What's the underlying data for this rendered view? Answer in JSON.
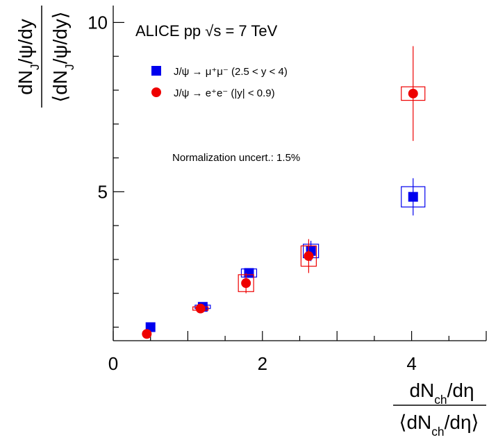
{
  "chart_data": {
    "type": "scatter",
    "title": "ALICE pp √s = 7 TeV",
    "note": "Normalization uncert.: 1.5%",
    "xlabel": {
      "numerator": "dN_ch/dη",
      "denominator": "⟨dN_ch/dη⟩"
    },
    "ylabel": {
      "numerator": "dN_J/ψ/dy",
      "denominator": "⟨dN_J/ψ/dy⟩"
    },
    "xlim": [
      0,
      5
    ],
    "ylim": [
      0.6,
      10.5
    ],
    "x_ticks": [
      0,
      2,
      4
    ],
    "y_ticks": [
      5,
      10
    ],
    "legend_position": "top-left",
    "series": [
      {
        "name": "J/ψ → μ⁺μ⁻ (2.5 < y < 4)",
        "marker": "square",
        "color": "#0000ee",
        "points": [
          {
            "x": 0.5,
            "y": 1.0,
            "stat_err": 0.0,
            "sys_err": 0.0
          },
          {
            "x": 1.2,
            "y": 1.6,
            "stat_err": 0.0,
            "sys_err": 0.05
          },
          {
            "x": 1.82,
            "y": 2.6,
            "stat_err": 0.0,
            "sys_err": 0.12
          },
          {
            "x": 2.65,
            "y": 3.25,
            "stat_err": 0.3,
            "sys_err": 0.2
          },
          {
            "x": 4.02,
            "y": 4.85,
            "stat_err": 0.55,
            "sys_err": 0.3
          }
        ]
      },
      {
        "name": "J/ψ → e⁺e⁻ (|y| < 0.9)",
        "marker": "circle",
        "color": "#ee0000",
        "points": [
          {
            "x": 0.45,
            "y": 0.8,
            "stat_err": 0.0,
            "sys_err": 0.0
          },
          {
            "x": 1.17,
            "y": 1.55,
            "stat_err": 0.0,
            "sys_err": 0.05
          },
          {
            "x": 1.78,
            "y": 2.3,
            "stat_err": 0.3,
            "sys_err": 0.25
          },
          {
            "x": 2.62,
            "y": 3.1,
            "stat_err": 0.5,
            "sys_err": 0.3
          },
          {
            "x": 4.02,
            "y": 7.9,
            "stat_err": 1.4,
            "sys_err": 0.2
          }
        ]
      }
    ]
  }
}
